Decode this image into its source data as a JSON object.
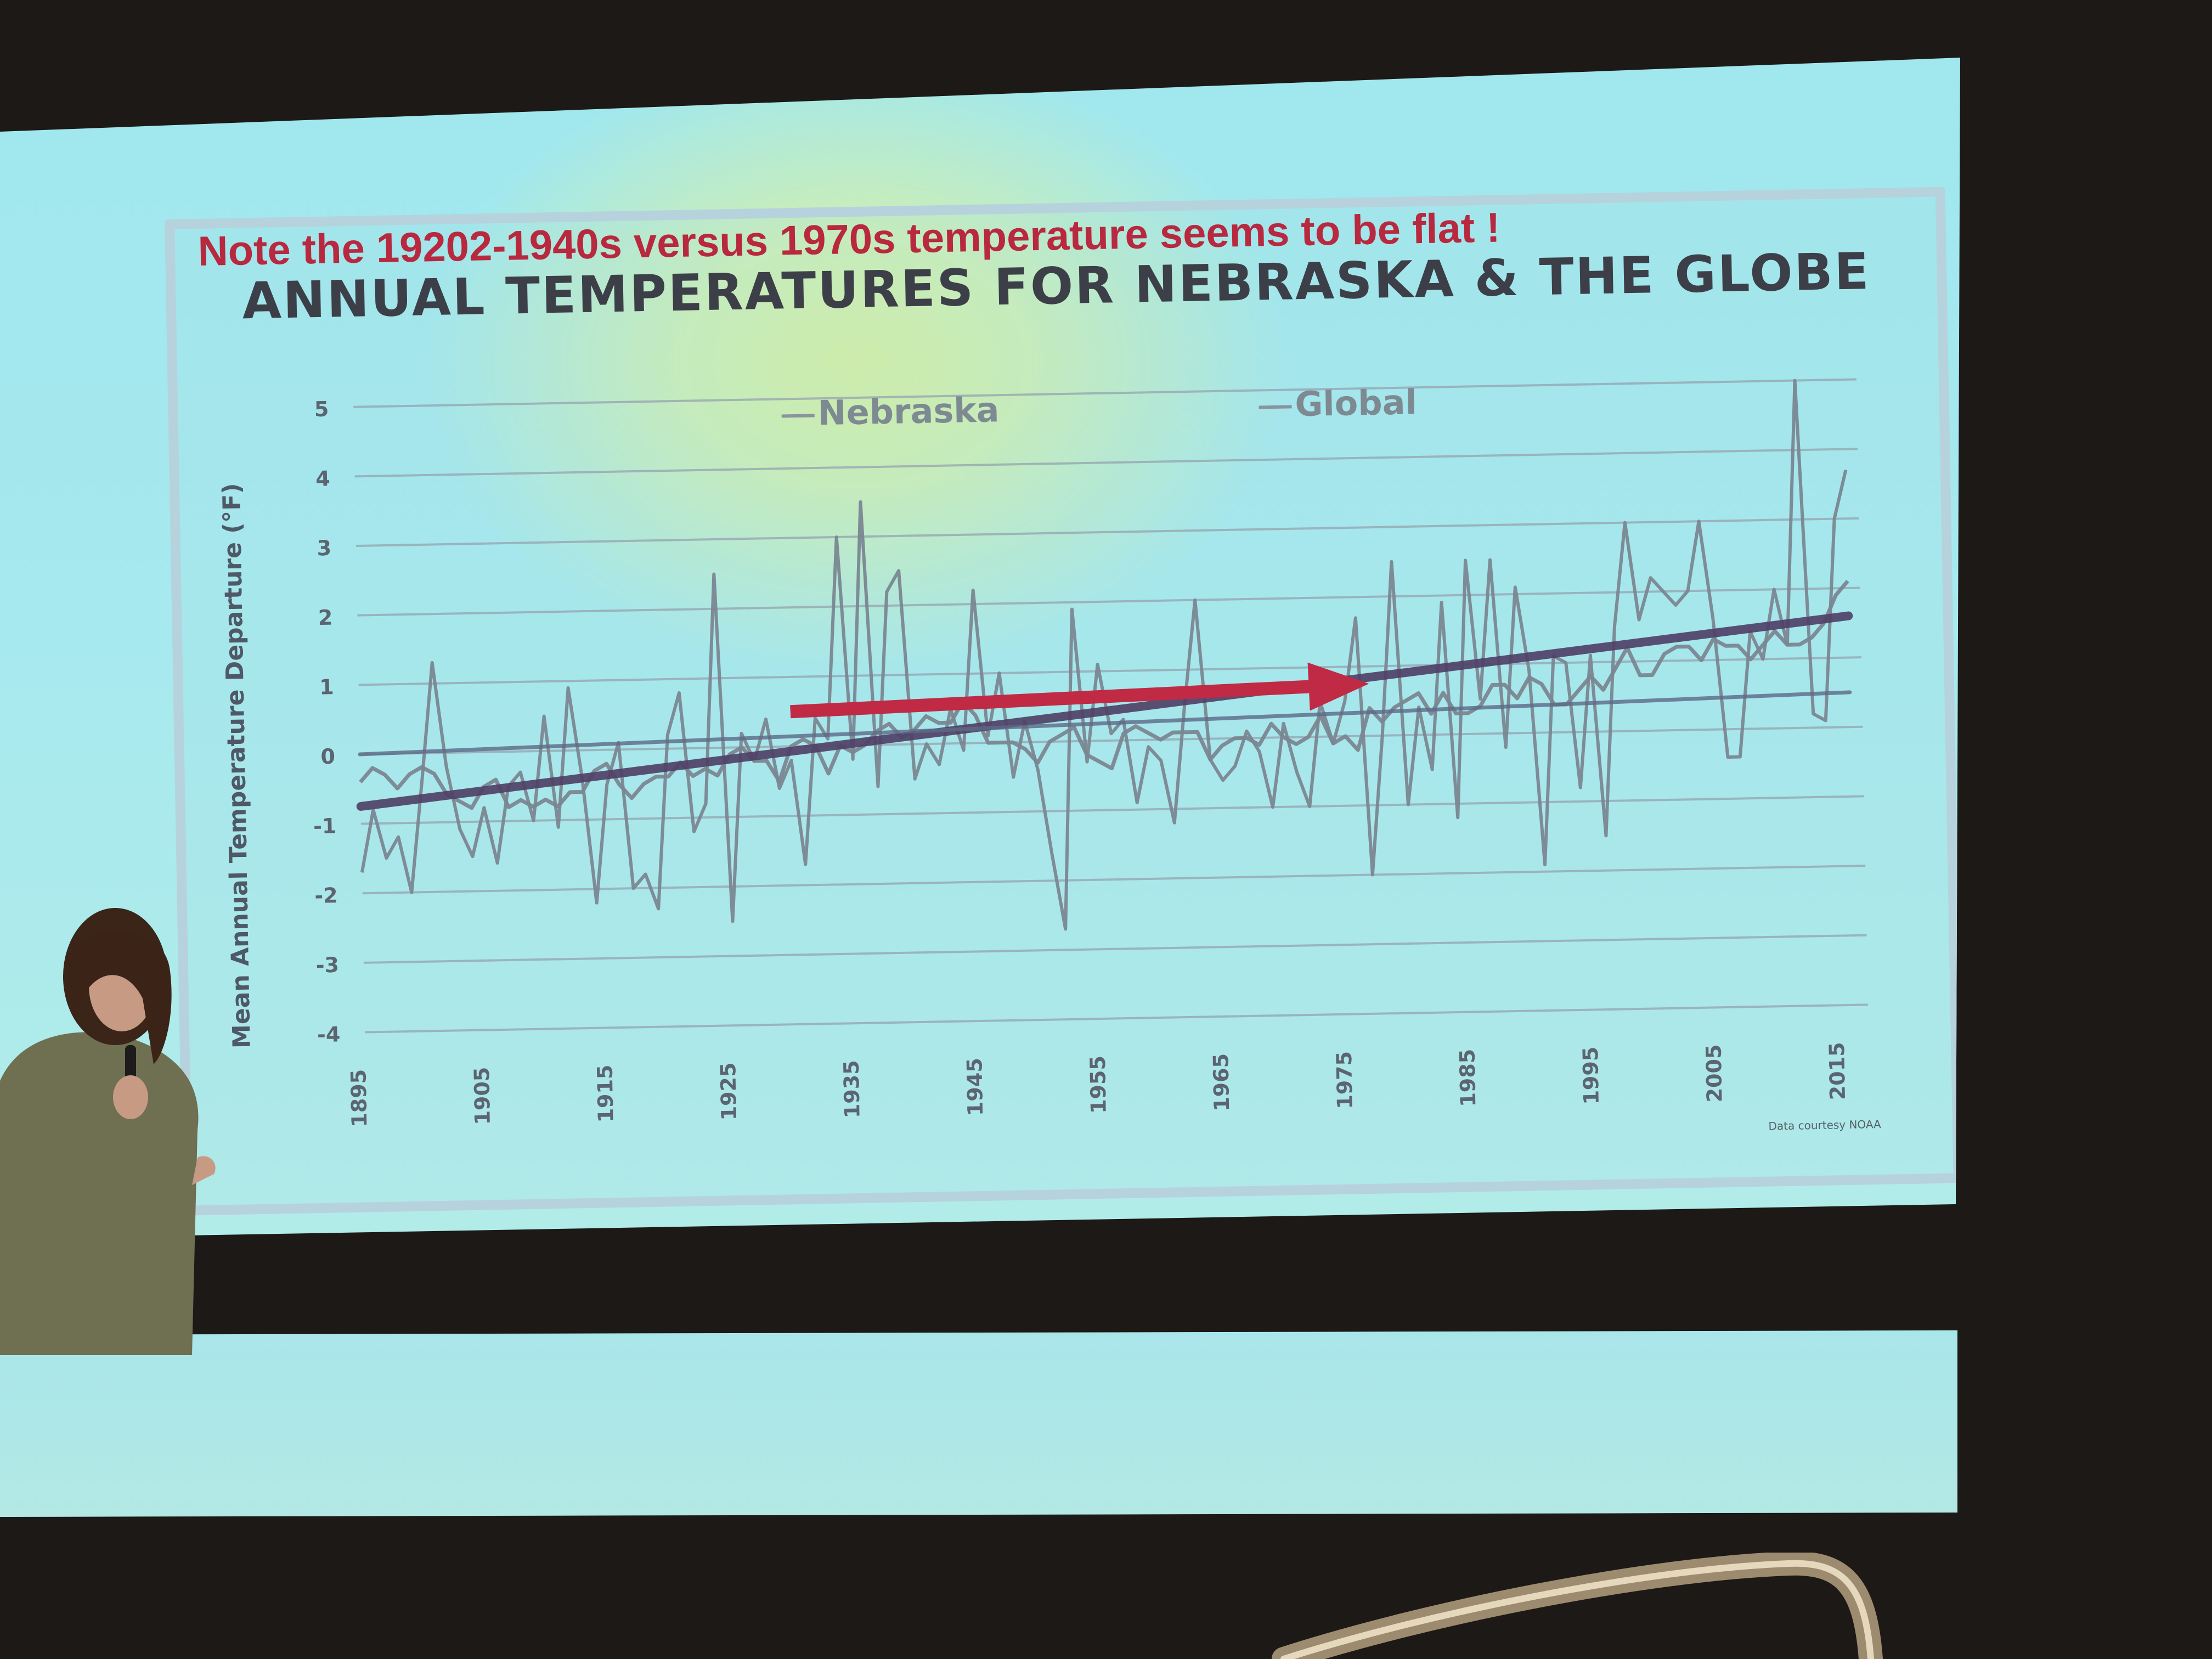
{
  "chart_data": {
    "type": "line",
    "title": "ANNUAL TEMPERATURES FOR NEBRASKA & THE GLOBE",
    "ylabel": "Mean Annual Temperature Departure (°F)",
    "xlabel": "",
    "ylim": [
      -4,
      5
    ],
    "xlim": [
      1895,
      2017
    ],
    "yticks": [
      5,
      4,
      3,
      2,
      1,
      0,
      -1,
      -2,
      -3,
      -4
    ],
    "xticks": [
      "1895",
      "1905",
      "1915",
      "1925",
      "1935",
      "1945",
      "1955",
      "1965",
      "1975",
      "1985",
      "1995",
      "2005",
      "2015"
    ],
    "legend": [
      "Nebraska",
      "Global"
    ],
    "legend_position": "top",
    "grid": "horizontal",
    "source_note": "Data courtesy NOAA",
    "series": [
      {
        "name": "Nebraska",
        "x": [
          1895,
          1896,
          1897,
          1898,
          1899,
          1900,
          1901,
          1902,
          1903,
          1904,
          1905,
          1906,
          1907,
          1908,
          1909,
          1910,
          1911,
          1912,
          1913,
          1914,
          1915,
          1916,
          1917,
          1918,
          1919,
          1920,
          1921,
          1922,
          1923,
          1924,
          1925,
          1926,
          1927,
          1928,
          1929,
          1930,
          1931,
          1932,
          1933,
          1934,
          1935,
          1936,
          1937,
          1938,
          1939,
          1940,
          1941,
          1942,
          1943,
          1944,
          1945,
          1946,
          1947,
          1948,
          1949,
          1950,
          1951,
          1952,
          1953,
          1954,
          1955,
          1956,
          1957,
          1958,
          1959,
          1960,
          1961,
          1962,
          1963,
          1964,
          1965,
          1966,
          1967,
          1968,
          1969,
          1970,
          1971,
          1972,
          1973,
          1974,
          1975,
          1976,
          1977,
          1978,
          1979,
          1980,
          1981,
          1982,
          1983,
          1984,
          1985,
          1986,
          1987,
          1988,
          1989,
          1990,
          1991,
          1992,
          1993,
          1994,
          1995,
          1996,
          1997,
          1998,
          1999,
          2000,
          2001,
          2002,
          2003,
          2004,
          2005,
          2006,
          2007,
          2008,
          2009,
          2010,
          2011,
          2012,
          2013,
          2014,
          2015,
          2016
        ],
        "values": [
          -1.7,
          -0.8,
          -1.5,
          -1.2,
          -2.0,
          -0.4,
          1.3,
          -0.2,
          -1.1,
          -1.5,
          -0.8,
          -1.6,
          -0.5,
          -0.3,
          -1.0,
          0.5,
          -1.1,
          0.9,
          -0.4,
          -2.2,
          -0.5,
          0.1,
          -2.0,
          -1.8,
          -2.3,
          0.2,
          0.8,
          -1.2,
          -0.8,
          2.5,
          -2.5,
          0.2,
          -0.2,
          0.4,
          -0.6,
          -0.2,
          -1.7,
          0.4,
          0.1,
          3.0,
          -0.2,
          3.5,
          -0.6,
          2.2,
          2.5,
          -0.5,
          0.0,
          -0.3,
          0.5,
          -0.1,
          2.2,
          0.1,
          1.0,
          -0.5,
          0.3,
          -0.4,
          -1.6,
          -2.7,
          1.9,
          -0.3,
          1.1,
          0.1,
          0.3,
          -0.9,
          -0.1,
          -0.3,
          -1.2,
          0.5,
          2.0,
          -0.3,
          -0.6,
          -0.4,
          0.1,
          -0.2,
          -1.0,
          0.2,
          -0.5,
          -1.0,
          0.5,
          -0.1,
          0.5,
          1.7,
          -2.0,
          0.0,
          2.5,
          -1.0,
          0.4,
          -0.5,
          1.9,
          -1.2,
          2.5,
          0.5,
          2.5,
          -0.2,
          2.1,
          0.9,
          -1.9,
          1.1,
          1.0,
          -0.8,
          1.1,
          -1.5,
          1.5,
          3.0,
          1.6,
          2.2,
          2.0,
          1.8,
          2.0,
          3.0,
          1.6,
          -0.4,
          -0.4,
          1.4,
          1.0,
          2.0,
          1.2,
          5.0,
          0.2,
          0.1,
          3.0,
          3.7
        ]
      },
      {
        "name": "Global",
        "x": [
          1895,
          1896,
          1897,
          1898,
          1899,
          1900,
          1901,
          1902,
          1903,
          1904,
          1905,
          1906,
          1907,
          1908,
          1909,
          1910,
          1911,
          1912,
          1913,
          1914,
          1915,
          1916,
          1917,
          1918,
          1919,
          1920,
          1921,
          1922,
          1923,
          1924,
          1925,
          1926,
          1927,
          1928,
          1929,
          1930,
          1931,
          1932,
          1933,
          1934,
          1935,
          1936,
          1937,
          1938,
          1939,
          1940,
          1941,
          1942,
          1943,
          1944,
          1945,
          1946,
          1947,
          1948,
          1949,
          1950,
          1951,
          1952,
          1953,
          1954,
          1955,
          1956,
          1957,
          1958,
          1959,
          1960,
          1961,
          1962,
          1963,
          1964,
          1965,
          1966,
          1967,
          1968,
          1969,
          1970,
          1971,
          1972,
          1973,
          1974,
          1975,
          1976,
          1977,
          1978,
          1979,
          1980,
          1981,
          1982,
          1983,
          1984,
          1985,
          1986,
          1987,
          1988,
          1989,
          1990,
          1991,
          1992,
          1993,
          1994,
          1995,
          1996,
          1997,
          1998,
          1999,
          2000,
          2001,
          2002,
          2003,
          2004,
          2005,
          2006,
          2007,
          2008,
          2009,
          2010,
          2011,
          2012,
          2013,
          2014,
          2015,
          2016
        ],
        "values": [
          -0.4,
          -0.2,
          -0.3,
          -0.5,
          -0.3,
          -0.2,
          -0.3,
          -0.6,
          -0.7,
          -0.8,
          -0.5,
          -0.4,
          -0.8,
          -0.7,
          -0.8,
          -0.7,
          -0.8,
          -0.6,
          -0.6,
          -0.3,
          -0.2,
          -0.5,
          -0.7,
          -0.5,
          -0.4,
          -0.4,
          -0.2,
          -0.4,
          -0.3,
          -0.4,
          -0.1,
          0.0,
          -0.2,
          -0.2,
          -0.5,
          0.0,
          0.1,
          0.0,
          -0.4,
          0.0,
          -0.1,
          0.0,
          0.2,
          0.3,
          0.1,
          0.2,
          0.4,
          0.3,
          0.3,
          0.6,
          0.4,
          0.0,
          0.0,
          0.0,
          -0.1,
          -0.3,
          0.0,
          0.1,
          0.2,
          -0.2,
          -0.3,
          -0.4,
          0.1,
          0.2,
          0.1,
          0.0,
          0.1,
          0.1,
          0.1,
          -0.3,
          -0.1,
          0.0,
          0.0,
          -0.1,
          0.2,
          0.0,
          -0.1,
          0.0,
          0.3,
          -0.1,
          0.0,
          -0.2,
          0.4,
          0.2,
          0.4,
          0.5,
          0.6,
          0.3,
          0.6,
          0.3,
          0.3,
          0.4,
          0.7,
          0.7,
          0.5,
          0.8,
          0.7,
          0.4,
          0.4,
          0.6,
          0.8,
          0.6,
          0.9,
          1.2,
          0.8,
          0.8,
          1.1,
          1.2,
          1.2,
          1.0,
          1.3,
          1.2,
          1.2,
          1.0,
          1.2,
          1.4,
          1.2,
          1.2,
          1.3,
          1.5,
          1.9,
          2.1
        ]
      }
    ],
    "trend_lines": [
      {
        "x": [
          1895,
          2016
        ],
        "values": [
          -0.75,
          1.6
        ]
      },
      {
        "x": [
          1895,
          2016
        ],
        "values": [
          0.0,
          0.5
        ]
      }
    ],
    "annotation": {
      "text": "Note the 19202-1940s versus 1970s temperature seems to be flat !",
      "arrow_from": [
        1930,
        0.5
      ],
      "arrow_to": [
        1977,
        0.75
      ]
    }
  },
  "colors": {
    "series_line": "#7a8792",
    "trend_line": "#4f3f66",
    "annotation": "#b8283e",
    "arrow": "#c02a44",
    "grid": "#95a3b0",
    "title": "#3d3f48"
  }
}
